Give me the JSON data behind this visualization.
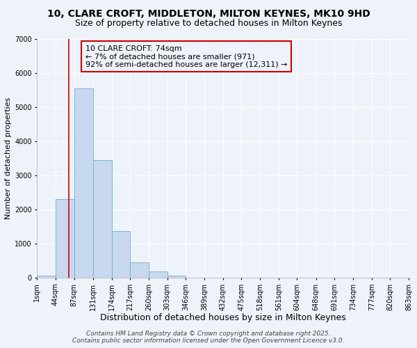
{
  "title": "10, CLARE CROFT, MIDDLETON, MILTON KEYNES, MK10 9HD",
  "subtitle": "Size of property relative to detached houses in Milton Keynes",
  "xlabel": "Distribution of detached houses by size in Milton Keynes",
  "ylabel": "Number of detached properties",
  "bar_values": [
    50,
    2300,
    5550,
    3450,
    1370,
    450,
    170,
    60,
    0,
    0,
    0,
    0,
    0,
    0,
    0,
    0,
    0,
    0,
    0,
    0
  ],
  "bin_edges": [
    1,
    44,
    87,
    131,
    174,
    217,
    260,
    303,
    346,
    389,
    432,
    475,
    518,
    561,
    604,
    648,
    691,
    734,
    777,
    820,
    863
  ],
  "bin_labels": [
    "1sqm",
    "44sqm",
    "87sqm",
    "131sqm",
    "174sqm",
    "217sqm",
    "260sqm",
    "303sqm",
    "346sqm",
    "389sqm",
    "432sqm",
    "475sqm",
    "518sqm",
    "561sqm",
    "604sqm",
    "648sqm",
    "691sqm",
    "734sqm",
    "777sqm",
    "820sqm",
    "863sqm"
  ],
  "ylim": [
    0,
    7000
  ],
  "yticks": [
    0,
    1000,
    2000,
    3000,
    4000,
    5000,
    6000,
    7000
  ],
  "bar_color": "#c8d9ef",
  "bar_edge_color": "#6baed6",
  "vline_x": 74,
  "vline_color": "#cc0000",
  "annotation_title": "10 CLARE CROFT: 74sqm",
  "annotation_line1": "← 7% of detached houses are smaller (971)",
  "annotation_line2": "92% of semi-detached houses are larger (12,311) →",
  "annotation_box_edge": "#cc0000",
  "footer1": "Contains HM Land Registry data © Crown copyright and database right 2025.",
  "footer2": "Contains public sector information licensed under the Open Government Licence v3.0.",
  "bg_color": "#eef2f9",
  "title_fontsize": 10,
  "subtitle_fontsize": 9,
  "xlabel_fontsize": 9,
  "ylabel_fontsize": 8,
  "tick_fontsize": 7,
  "annotation_fontsize": 8,
  "footer_fontsize": 6.5
}
